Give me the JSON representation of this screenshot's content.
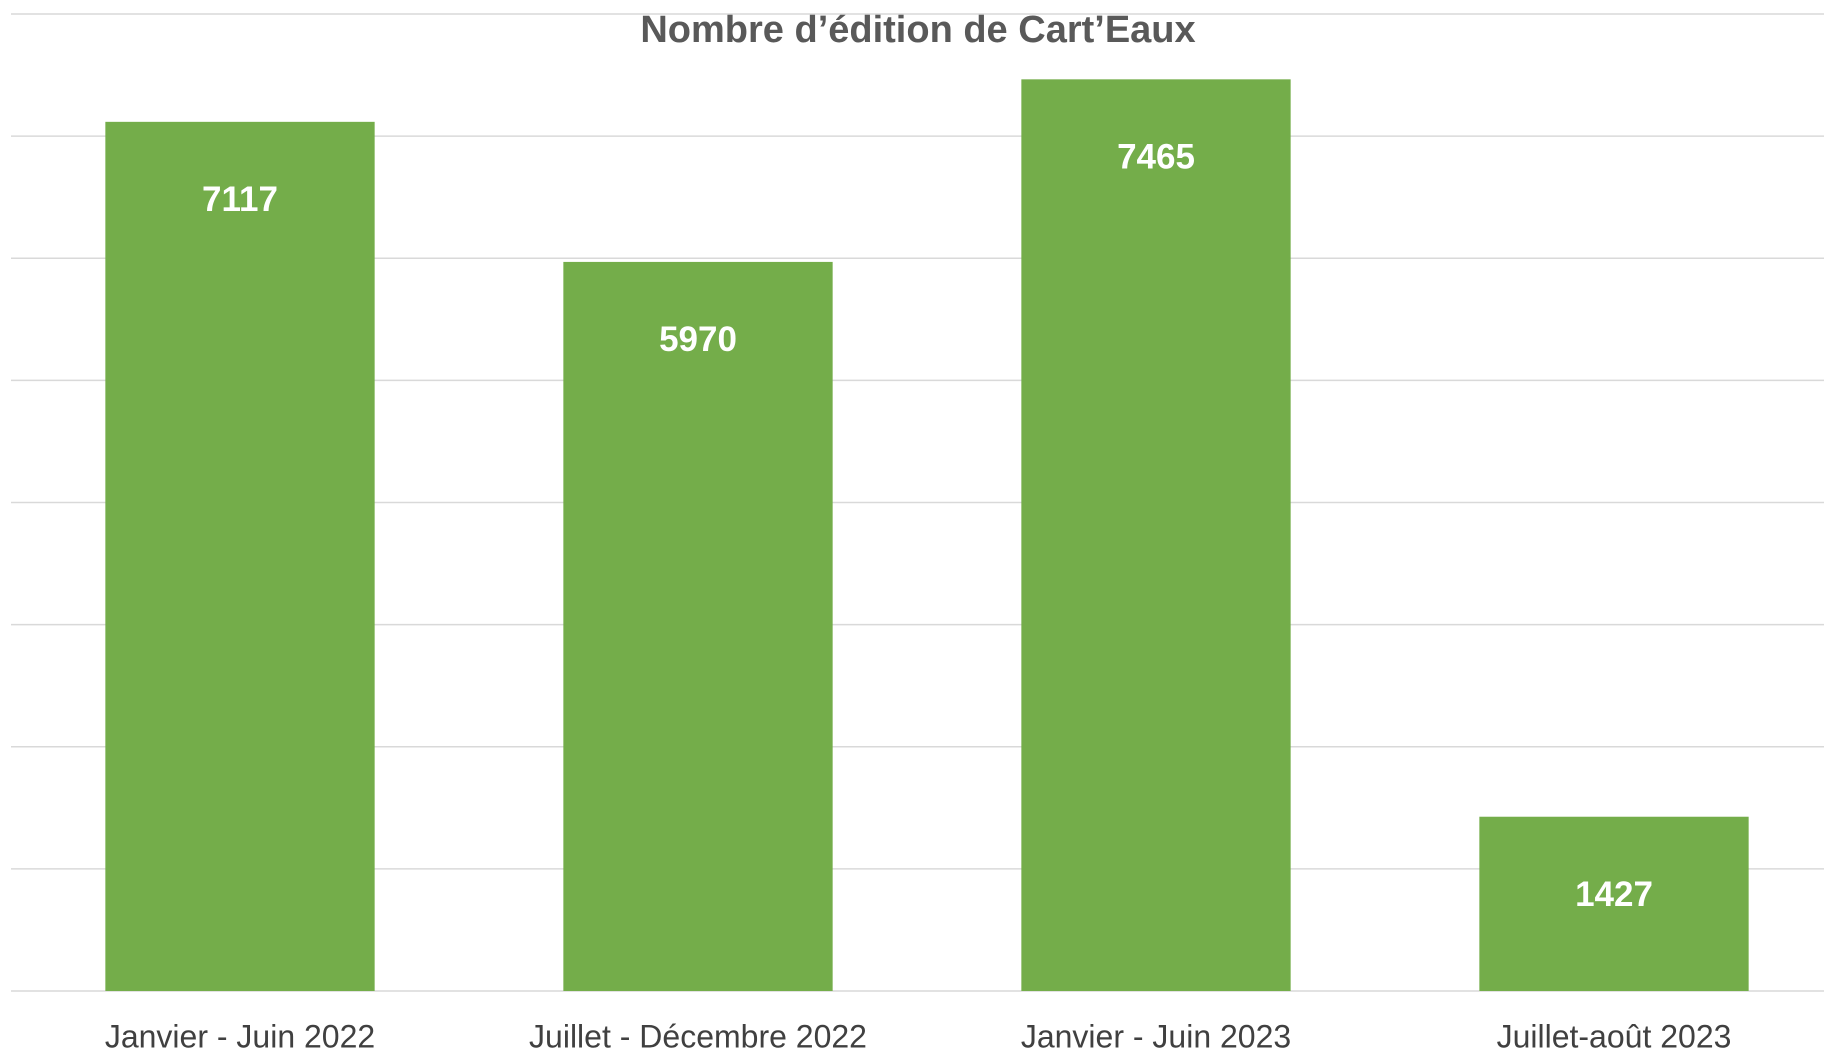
{
  "chart_data": {
    "type": "bar",
    "title": "Nombre d’édition de Cart’Eaux",
    "categories": [
      "Janvier - Juin 2022",
      "Juillet - Décembre 2022",
      "Janvier - Juin 2023",
      "Juillet-août 2023"
    ],
    "values": [
      7117,
      5970,
      7465,
      1427
    ],
    "color": "#74ad4a",
    "ylim": [
      0,
      8000
    ],
    "yticks": [
      0,
      1000,
      2000,
      3000,
      4000,
      5000,
      6000,
      7000,
      8000
    ],
    "grid": true
  }
}
